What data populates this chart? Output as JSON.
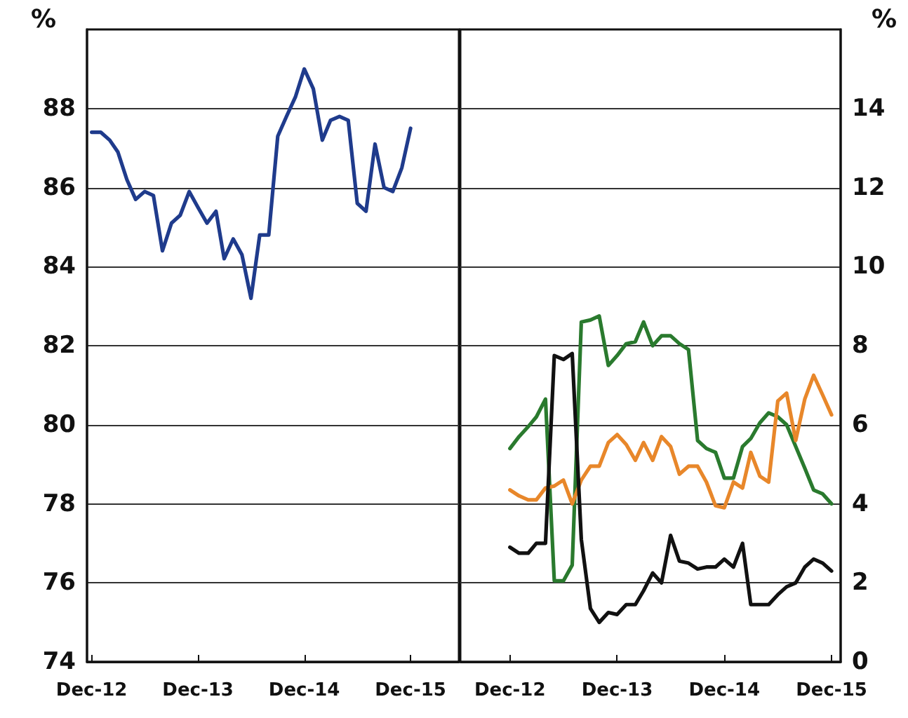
{
  "chart_data": [
    {
      "type": "line",
      "ylabel": "%",
      "x": [
        "2012-12",
        "2013-01",
        "2013-02",
        "2013-03",
        "2013-04",
        "2013-05",
        "2013-06",
        "2013-07",
        "2013-08",
        "2013-09",
        "2013-10",
        "2013-11",
        "2013-12",
        "2014-01",
        "2014-02",
        "2014-03",
        "2014-04",
        "2014-05",
        "2014-06",
        "2014-07",
        "2014-08",
        "2014-09",
        "2014-10",
        "2014-11",
        "2014-12",
        "2015-01",
        "2015-02",
        "2015-03",
        "2015-04",
        "2015-05",
        "2015-06",
        "2015-07",
        "2015-08",
        "2015-09",
        "2015-10",
        "2015-11",
        "2015-12"
      ],
      "series": [
        {
          "color": "#1f3b8c",
          "values": [
            87.4,
            87.4,
            87.2,
            86.9,
            86.2,
            85.7,
            85.9,
            85.8,
            84.4,
            85.1,
            85.3,
            85.9,
            85.5,
            85.1,
            85.4,
            84.2,
            84.7,
            84.3,
            83.2,
            84.8,
            84.8,
            87.3,
            87.8,
            88.3,
            89.0,
            88.5,
            87.2,
            87.7,
            87.8,
            87.7,
            85.6,
            85.4,
            87.1,
            86.0,
            85.9,
            86.5,
            87.5
          ]
        }
      ],
      "xlim": [
        "2012-11-15",
        "2016-05-15"
      ],
      "xticks": [
        {
          "value": "2012-12",
          "label": "Dec-12"
        },
        {
          "value": "2013-12",
          "label": "Dec-13"
        },
        {
          "value": "2014-12",
          "label": "Dec-14"
        },
        {
          "value": "2015-12",
          "label": "Dec-15"
        }
      ],
      "ylim": [
        74,
        90
      ],
      "yticks": [
        74,
        76,
        78,
        80,
        82,
        84,
        86,
        88
      ],
      "grid": "y",
      "marker": "none",
      "line_style": "solid"
    },
    {
      "type": "line",
      "ylabel": "%",
      "x": [
        "2012-12",
        "2013-01",
        "2013-02",
        "2013-03",
        "2013-04",
        "2013-05",
        "2013-06",
        "2013-07",
        "2013-08",
        "2013-09",
        "2013-10",
        "2013-11",
        "2013-12",
        "2014-01",
        "2014-02",
        "2014-03",
        "2014-04",
        "2014-05",
        "2014-06",
        "2014-07",
        "2014-08",
        "2014-09",
        "2014-10",
        "2014-11",
        "2014-12",
        "2015-01",
        "2015-02",
        "2015-03",
        "2015-04",
        "2015-05",
        "2015-06",
        "2015-07",
        "2015-08",
        "2015-09",
        "2015-10",
        "2015-11",
        "2015-12"
      ],
      "series": [
        {
          "color": "#2a7a2e",
          "values": [
            5.4,
            5.7,
            5.95,
            6.2,
            6.65,
            2.05,
            2.05,
            2.45,
            8.6,
            8.65,
            8.75,
            7.5,
            7.75,
            8.05,
            8.1,
            8.6,
            8.0,
            8.25,
            8.25,
            8.05,
            7.9,
            5.6,
            5.4,
            5.3,
            4.65,
            4.65,
            5.45,
            5.65,
            6.05,
            6.3,
            6.2,
            6.0,
            5.45,
            4.9,
            4.35,
            4.25,
            4.0
          ]
        },
        {
          "color": "#e8872a",
          "values": [
            4.35,
            4.2,
            4.1,
            4.1,
            4.4,
            4.45,
            4.6,
            4.0,
            4.6,
            4.95,
            4.95,
            5.55,
            5.75,
            5.5,
            5.1,
            5.55,
            5.1,
            5.7,
            5.45,
            4.75,
            4.95,
            4.95,
            4.55,
            3.95,
            3.9,
            4.55,
            4.4,
            5.3,
            4.7,
            4.55,
            6.6,
            6.8,
            5.6,
            6.65,
            7.25,
            6.75,
            6.25
          ]
        },
        {
          "color": "#111111",
          "values": [
            2.9,
            2.75,
            2.75,
            3.0,
            3.0,
            7.75,
            7.65,
            7.8,
            3.1,
            1.35,
            1.0,
            1.25,
            1.2,
            1.45,
            1.45,
            1.8,
            2.25,
            2.0,
            3.2,
            2.55,
            2.5,
            2.35,
            2.4,
            2.4,
            2.6,
            2.4,
            3.0,
            1.45,
            1.45,
            1.45,
            1.7,
            1.9,
            2.0,
            2.4,
            2.6,
            2.5,
            2.3
          ]
        }
      ],
      "xlim": [
        "2012-06-15",
        "2016-01-01"
      ],
      "xticks": [
        {
          "value": "2012-12",
          "label": "Dec-12"
        },
        {
          "value": "2013-12",
          "label": "Dec-13"
        },
        {
          "value": "2014-12",
          "label": "Dec-14"
        },
        {
          "value": "2015-12",
          "label": "Dec-15"
        }
      ],
      "ylim": [
        0,
        16
      ],
      "yticks": [
        0,
        2,
        4,
        6,
        8,
        10,
        12,
        14
      ],
      "grid": "y",
      "marker": "none",
      "line_style": "solid"
    }
  ]
}
